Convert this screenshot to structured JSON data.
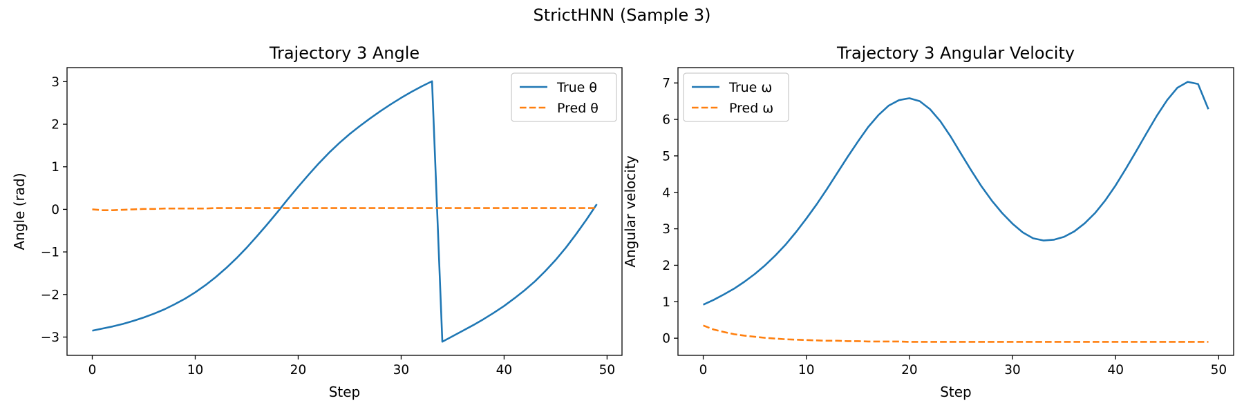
{
  "figure": {
    "title": "StrictHNN (Sample 3)"
  },
  "colors": {
    "true": "#1f77b4",
    "pred": "#ff7f0e",
    "axes": "#000000",
    "legend_border": "#cccccc"
  },
  "chart_data": [
    {
      "type": "line",
      "title": "Trajectory 3 Angle",
      "xlabel": "Step",
      "ylabel": "Angle (rad)",
      "xlim": [
        -2.45,
        51.45
      ],
      "ylim": [
        -3.43,
        3.33
      ],
      "xticks": [
        0,
        10,
        20,
        30,
        40,
        50
      ],
      "yticks": [
        -3,
        -2,
        -1,
        0,
        1,
        2,
        3
      ],
      "legend": "upper right",
      "grid": false,
      "series": [
        {
          "name": "True θ",
          "style": "solid",
          "x": [
            0,
            1,
            2,
            3,
            4,
            5,
            6,
            7,
            8,
            9,
            10,
            11,
            12,
            13,
            14,
            15,
            16,
            17,
            18,
            19,
            20,
            21,
            22,
            23,
            24,
            25,
            26,
            27,
            28,
            29,
            30,
            31,
            32,
            33,
            34,
            35,
            36,
            37,
            38,
            39,
            40,
            41,
            42,
            43,
            44,
            45,
            46,
            47,
            48,
            49
          ],
          "y": [
            -2.85,
            -2.8,
            -2.75,
            -2.69,
            -2.62,
            -2.54,
            -2.45,
            -2.35,
            -2.23,
            -2.1,
            -1.95,
            -1.78,
            -1.59,
            -1.38,
            -1.15,
            -0.9,
            -0.63,
            -0.35,
            -0.06,
            0.24,
            0.53,
            0.81,
            1.08,
            1.33,
            1.56,
            1.77,
            1.96,
            2.14,
            2.31,
            2.47,
            2.62,
            2.76,
            2.89,
            3.01,
            -3.11,
            -2.98,
            -2.85,
            -2.72,
            -2.58,
            -2.43,
            -2.27,
            -2.09,
            -1.9,
            -1.69,
            -1.45,
            -1.19,
            -0.9,
            -0.58,
            -0.24,
            0.12
          ]
        },
        {
          "name": "Pred θ",
          "style": "dashed",
          "x": [
            0,
            1,
            2,
            3,
            4,
            5,
            6,
            7,
            8,
            9,
            10,
            11,
            12,
            13,
            14,
            15,
            16,
            17,
            18,
            19,
            20,
            21,
            22,
            23,
            24,
            25,
            26,
            27,
            28,
            29,
            30,
            31,
            32,
            33,
            34,
            35,
            36,
            37,
            38,
            39,
            40,
            41,
            42,
            43,
            44,
            45,
            46,
            47,
            48,
            49
          ],
          "y": [
            0.0,
            -0.02,
            -0.02,
            -0.01,
            0.0,
            0.01,
            0.01,
            0.02,
            0.02,
            0.02,
            0.02,
            0.02,
            0.03,
            0.03,
            0.03,
            0.03,
            0.03,
            0.03,
            0.03,
            0.03,
            0.03,
            0.03,
            0.03,
            0.03,
            0.03,
            0.03,
            0.03,
            0.03,
            0.03,
            0.03,
            0.03,
            0.03,
            0.03,
            0.03,
            0.03,
            0.03,
            0.03,
            0.03,
            0.03,
            0.03,
            0.03,
            0.03,
            0.03,
            0.03,
            0.03,
            0.03,
            0.03,
            0.03,
            0.03,
            0.03
          ]
        }
      ]
    },
    {
      "type": "line",
      "title": "Trajectory 3 Angular Velocity",
      "xlabel": "Step",
      "ylabel": "Angular velocity",
      "xlim": [
        -2.45,
        51.45
      ],
      "ylim": [
        -0.47,
        7.42
      ],
      "xticks": [
        0,
        10,
        20,
        30,
        40,
        50
      ],
      "yticks": [
        0,
        1,
        2,
        3,
        4,
        5,
        6,
        7
      ],
      "legend": "upper left",
      "grid": false,
      "series": [
        {
          "name": "True ω",
          "style": "solid",
          "x": [
            0,
            1,
            2,
            3,
            4,
            5,
            6,
            7,
            8,
            9,
            10,
            11,
            12,
            13,
            14,
            15,
            16,
            17,
            18,
            19,
            20,
            21,
            22,
            23,
            24,
            25,
            26,
            27,
            28,
            29,
            30,
            31,
            32,
            33,
            34,
            35,
            36,
            37,
            38,
            39,
            40,
            41,
            42,
            43,
            44,
            45,
            46,
            47,
            48,
            49
          ],
          "y": [
            0.92,
            1.05,
            1.2,
            1.36,
            1.55,
            1.76,
            2.0,
            2.27,
            2.57,
            2.91,
            3.28,
            3.67,
            4.09,
            4.53,
            4.97,
            5.39,
            5.79,
            6.12,
            6.38,
            6.53,
            6.58,
            6.5,
            6.28,
            5.95,
            5.53,
            5.06,
            4.6,
            4.16,
            3.77,
            3.43,
            3.14,
            2.9,
            2.74,
            2.68,
            2.7,
            2.78,
            2.93,
            3.15,
            3.43,
            3.78,
            4.19,
            4.65,
            5.13,
            5.62,
            6.1,
            6.53,
            6.87,
            7.03,
            6.97,
            6.28
          ]
        },
        {
          "name": "Pred ω",
          "style": "dashed",
          "x": [
            0,
            1,
            2,
            3,
            4,
            5,
            6,
            7,
            8,
            9,
            10,
            11,
            12,
            13,
            14,
            15,
            16,
            17,
            18,
            19,
            20,
            21,
            22,
            23,
            24,
            25,
            26,
            27,
            28,
            29,
            30,
            31,
            32,
            33,
            34,
            35,
            36,
            37,
            38,
            39,
            40,
            41,
            42,
            43,
            44,
            45,
            46,
            47,
            48,
            49
          ],
          "y": [
            0.35,
            0.24,
            0.17,
            0.11,
            0.07,
            0.04,
            0.01,
            -0.01,
            -0.03,
            -0.04,
            -0.05,
            -0.06,
            -0.07,
            -0.07,
            -0.08,
            -0.08,
            -0.09,
            -0.09,
            -0.09,
            -0.09,
            -0.1,
            -0.1,
            -0.1,
            -0.1,
            -0.1,
            -0.1,
            -0.1,
            -0.1,
            -0.1,
            -0.1,
            -0.1,
            -0.1,
            -0.1,
            -0.1,
            -0.1,
            -0.1,
            -0.1,
            -0.1,
            -0.1,
            -0.1,
            -0.1,
            -0.1,
            -0.1,
            -0.1,
            -0.1,
            -0.1,
            -0.1,
            -0.1,
            -0.1,
            -0.1
          ]
        }
      ]
    }
  ]
}
